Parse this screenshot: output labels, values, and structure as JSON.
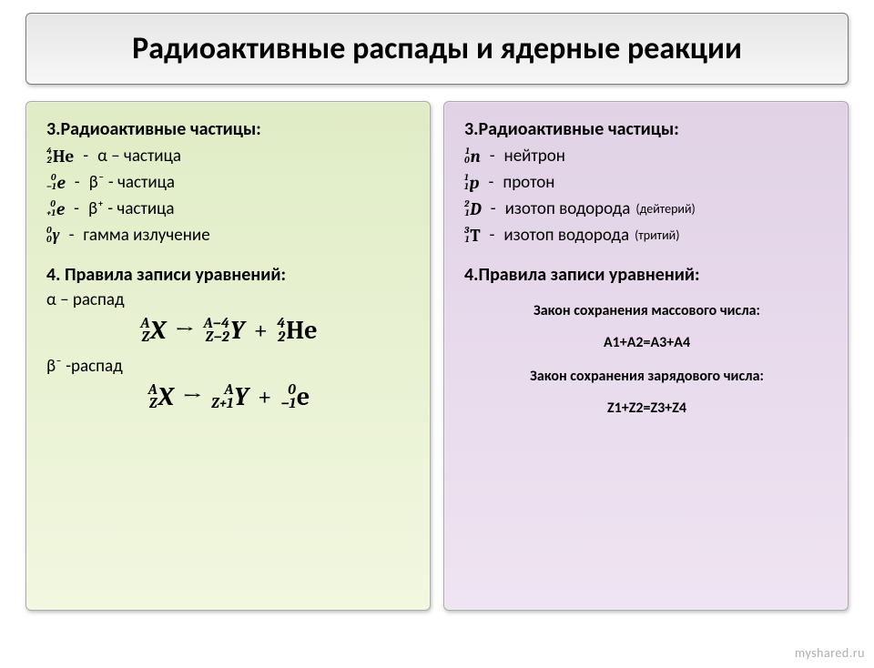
{
  "title": "Радиоактивные распады и ядерные реакции",
  "left": {
    "heading": "3.Радиоактивные частицы:",
    "p1": {
      "sup": "4",
      "sub": "2",
      "sym": "He",
      "desc": "α – частица"
    },
    "p2": {
      "sup": "0",
      "sub": "−1",
      "sym": "e",
      "desc": "β⁻ - частица"
    },
    "p3": {
      "sup": "0",
      "sub": "+1",
      "sym": "e",
      "desc": "β⁺ - частица"
    },
    "p4": {
      "sup": "0",
      "sub": "0",
      "sym": "γ",
      "desc": "гамма излучение"
    },
    "heading2": "4. Правила записи уравнений:",
    "alpha_label": "α – распад",
    "beta_label": "β⁻ -распад",
    "alpha_eq": {
      "X": {
        "sup": "A",
        "sub": "Z",
        "sym": "X"
      },
      "Y": {
        "sup": "A−4",
        "sub": "Z−2",
        "sym": "Y"
      },
      "He": {
        "sup": "4",
        "sub": "2",
        "sym": "He"
      }
    },
    "beta_eq": {
      "X": {
        "sup": "A",
        "sub": "Z",
        "sym": "X"
      },
      "Y": {
        "sup": "A",
        "sub": "Z+1",
        "sym": "Y"
      },
      "e": {
        "sup": "0",
        "sub": "−1",
        "sym": "e"
      }
    },
    "arrow": "→",
    "plus": "+"
  },
  "right": {
    "heading": "3.Радиоактивные частицы:",
    "p1": {
      "sup": "1",
      "sub": "0",
      "sym": "n",
      "desc": "нейтрон"
    },
    "p2": {
      "sup": "1",
      "sub": "1",
      "sym": "p",
      "desc": "протон"
    },
    "p3": {
      "sup": "2",
      "sub": "1",
      "sym": "D",
      "desc": "изотоп водорода",
      "note": "(дейтерий)"
    },
    "p4": {
      "sup": "3",
      "sub": "1",
      "sym": "T",
      "desc": "изотоп водорода",
      "note": "(тритий)"
    },
    "heading2": "4.Правила записи уравнений:",
    "law1_title": "Закон сохранения массового числа:",
    "law1_eq": "A1+A2=A3+A4",
    "law2_title": "Закон сохранения зарядового числа:",
    "law2_eq": "Z1+Z2=Z3+Z4"
  },
  "dash": "-",
  "watermark": "myshared.ru",
  "colors": {
    "title_bg_top": "#e6e6e6",
    "title_bg_bot": "#f7f7f7",
    "left_bg_top": "#e0ecc6",
    "left_bg_bot": "#f2f7e0",
    "right_bg_top": "#e1d2e6",
    "right_bg_bot": "#efe4f2",
    "border": "#aaaaaa",
    "text": "#000000"
  }
}
